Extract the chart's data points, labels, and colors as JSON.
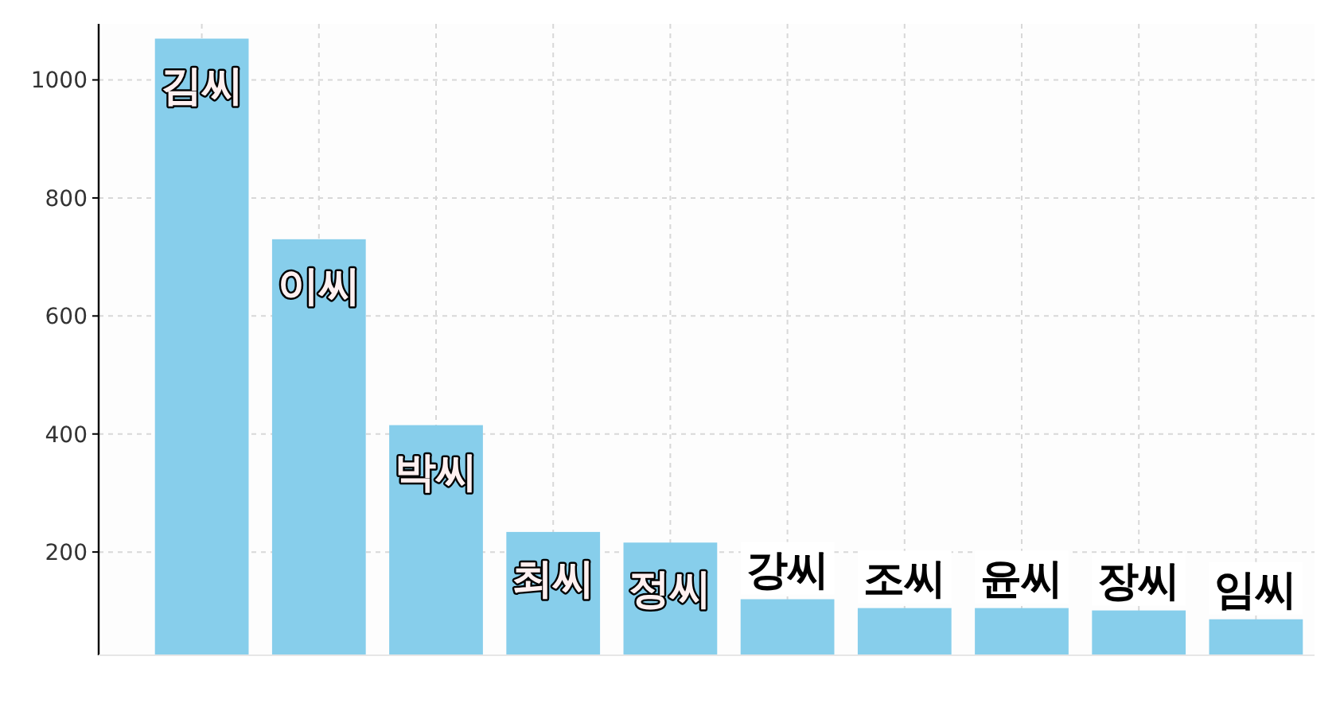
{
  "chart_data": {
    "type": "bar",
    "categories": [
      "김씨",
      "이씨",
      "박씨",
      "최씨",
      "정씨",
      "강씨",
      "조씨",
      "윤씨",
      "장씨",
      "임씨"
    ],
    "values": [
      1070,
      730,
      415,
      234,
      216,
      120,
      105,
      105,
      101,
      86
    ],
    "color": "#87ceeb",
    "ylim": [
      25,
      1095
    ],
    "yticks": [
      200,
      400,
      600,
      800,
      1000
    ],
    "grid": true,
    "line_style": "dashed"
  }
}
